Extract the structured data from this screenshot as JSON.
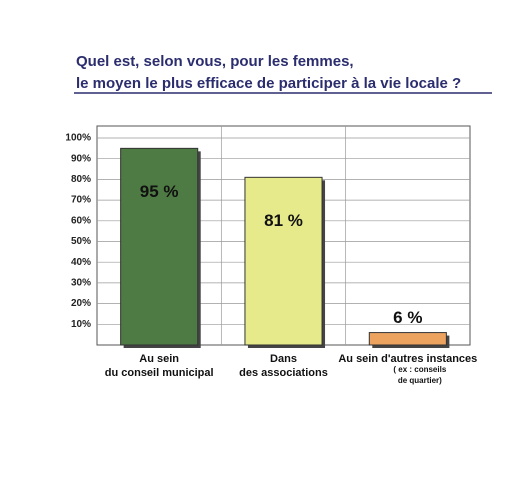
{
  "chart_data": {
    "type": "bar",
    "title": [
      "Quel est, selon vous, pour les femmes,",
      "le moyen le plus efficace de participer à la vie locale ?"
    ],
    "categories": [
      [
        "Au sein",
        "du conseil municipal"
      ],
      [
        "Dans",
        "des associations"
      ],
      [
        "Au sein d'autres instances",
        "( ex : conseils",
        "de quartier)"
      ]
    ],
    "values": [
      95,
      81,
      6
    ],
    "value_labels": [
      "95 %",
      "81 %",
      "6 %"
    ],
    "colors": [
      "#4e7a44",
      "#e6ea8a",
      "#eba35f"
    ],
    "ylim": [
      0,
      100
    ],
    "yticks": [
      {
        "value": 10,
        "label": "10%"
      },
      {
        "value": 20,
        "label": "20%"
      },
      {
        "value": 30,
        "label": "30%"
      },
      {
        "value": 40,
        "label": "40%"
      },
      {
        "value": 50,
        "label": "50%"
      },
      {
        "value": 60,
        "label": "60%"
      },
      {
        "value": 70,
        "label": "70%"
      },
      {
        "value": 80,
        "label": "80%"
      },
      {
        "value": 90,
        "label": "90%"
      },
      {
        "value": 100,
        "label": "100%"
      }
    ],
    "grid": true
  }
}
